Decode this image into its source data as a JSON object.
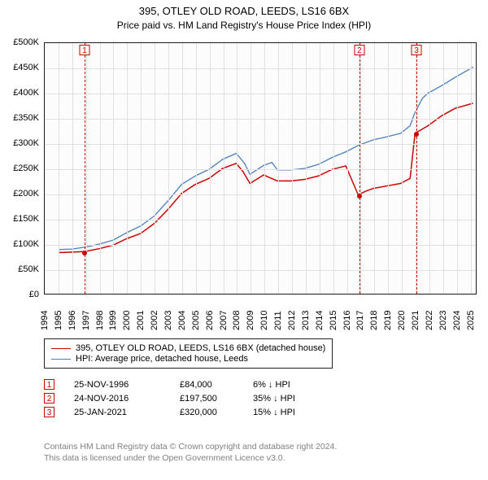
{
  "header": {
    "address": "395, OTLEY OLD ROAD, LEEDS, LS16 6BX",
    "subtitle": "Price paid vs. HM Land Registry's House Price Index (HPI)"
  },
  "chart": {
    "type": "line",
    "x_domain": [
      1994,
      2025.5
    ],
    "y_domain": [
      0,
      500000
    ],
    "background_color": "#fcfcfc",
    "grid_color": "#e0e0e0",
    "border_color": "#1a1a1a",
    "y_ticks": [
      0,
      50000,
      100000,
      150000,
      200000,
      250000,
      300000,
      350000,
      400000,
      450000,
      500000
    ],
    "y_tick_labels": [
      "£0",
      "£50K",
      "£100K",
      "£150K",
      "£200K",
      "£250K",
      "£300K",
      "£350K",
      "£400K",
      "£450K",
      "£500K"
    ],
    "x_ticks": [
      1994,
      1995,
      1996,
      1997,
      1998,
      1999,
      2000,
      2001,
      2002,
      2003,
      2004,
      2005,
      2006,
      2007,
      2008,
      2009,
      2010,
      2011,
      2012,
      2013,
      2014,
      2015,
      2016,
      2017,
      2018,
      2019,
      2020,
      2021,
      2022,
      2023,
      2024,
      2025
    ],
    "y_label_fontsize": 11,
    "x_label_fontsize": 11,
    "x_label_rotation": 90,
    "series": [
      {
        "name": "price_paid",
        "label": "395, OTLEY OLD ROAD, LEEDS, LS16 6BX (detached house)",
        "color": "#cc0000",
        "line_width": 1.5,
        "points": [
          [
            1995.0,
            82000
          ],
          [
            1996.9,
            84000
          ],
          [
            1998.0,
            90000
          ],
          [
            1999.0,
            97000
          ],
          [
            2000.0,
            110000
          ],
          [
            2001.0,
            120000
          ],
          [
            2002.0,
            140000
          ],
          [
            2003.0,
            168000
          ],
          [
            2004.0,
            200000
          ],
          [
            2005.0,
            218000
          ],
          [
            2006.0,
            230000
          ],
          [
            2007.0,
            250000
          ],
          [
            2008.0,
            260000
          ],
          [
            2008.5,
            243000
          ],
          [
            2009.0,
            220000
          ],
          [
            2010.0,
            237000
          ],
          [
            2011.0,
            225000
          ],
          [
            2012.0,
            225000
          ],
          [
            2013.0,
            228000
          ],
          [
            2014.0,
            235000
          ],
          [
            2015.0,
            248000
          ],
          [
            2016.0,
            255000
          ],
          [
            2016.9,
            197500
          ],
          [
            2017.5,
            205000
          ],
          [
            2018.0,
            210000
          ],
          [
            2019.0,
            215000
          ],
          [
            2020.0,
            220000
          ],
          [
            2020.7,
            230000
          ],
          [
            2021.06,
            320000
          ],
          [
            2022.0,
            335000
          ],
          [
            2023.0,
            355000
          ],
          [
            2024.0,
            370000
          ],
          [
            2025.3,
            380000
          ]
        ],
        "markers": [
          {
            "x": 1996.9,
            "y": 84000
          },
          {
            "x": 2016.9,
            "y": 197500
          },
          {
            "x": 2021.06,
            "y": 320000
          }
        ]
      },
      {
        "name": "hpi",
        "label": "HPI: Average price, detached house, Leeds",
        "color": "#4a7fb8",
        "line_width": 1.3,
        "points": [
          [
            1995.0,
            88000
          ],
          [
            1996.0,
            89000
          ],
          [
            1997.0,
            93000
          ],
          [
            1998.0,
            99000
          ],
          [
            1999.0,
            107000
          ],
          [
            2000.0,
            122000
          ],
          [
            2001.0,
            135000
          ],
          [
            2002.0,
            155000
          ],
          [
            2003.0,
            185000
          ],
          [
            2004.0,
            218000
          ],
          [
            2005.0,
            235000
          ],
          [
            2006.0,
            248000
          ],
          [
            2007.0,
            268000
          ],
          [
            2008.0,
            280000
          ],
          [
            2008.6,
            260000
          ],
          [
            2009.0,
            238000
          ],
          [
            2010.0,
            256000
          ],
          [
            2010.6,
            262000
          ],
          [
            2011.0,
            247000
          ],
          [
            2012.0,
            247000
          ],
          [
            2013.0,
            250000
          ],
          [
            2014.0,
            258000
          ],
          [
            2015.0,
            272000
          ],
          [
            2016.0,
            283000
          ],
          [
            2017.0,
            297000
          ],
          [
            2018.0,
            307000
          ],
          [
            2019.0,
            313000
          ],
          [
            2020.0,
            320000
          ],
          [
            2020.7,
            335000
          ],
          [
            2021.0,
            358000
          ],
          [
            2021.6,
            390000
          ],
          [
            2022.0,
            400000
          ],
          [
            2023.0,
            415000
          ],
          [
            2024.0,
            432000
          ],
          [
            2025.3,
            452000
          ]
        ]
      }
    ],
    "events": [
      {
        "num": "1",
        "x": 1996.9,
        "line_color": "#cc0000"
      },
      {
        "num": "2",
        "x": 2016.9,
        "line_color": "#cc0000"
      },
      {
        "num": "3",
        "x": 2021.06,
        "line_color": "#cc0000"
      }
    ]
  },
  "legend": {
    "items": [
      {
        "color": "#cc0000",
        "width": 1.6,
        "label": "395, OTLEY OLD ROAD, LEEDS, LS16 6BX (detached house)"
      },
      {
        "color": "#4a7fb8",
        "width": 1.4,
        "label": "HPI: Average price, detached house, Leeds"
      }
    ]
  },
  "events_table": {
    "rows": [
      {
        "num": "1",
        "date": "25-NOV-1996",
        "price": "£84,000",
        "diff": "6% ↓ HPI"
      },
      {
        "num": "2",
        "date": "24-NOV-2016",
        "price": "£197,500",
        "diff": "35% ↓ HPI"
      },
      {
        "num": "3",
        "date": "25-JAN-2021",
        "price": "£320,000",
        "diff": "15% ↓ HPI"
      }
    ]
  },
  "footer": {
    "line1": "Contains HM Land Registry data © Crown copyright and database right 2024.",
    "line2": "This data is licensed under the Open Government Licence v3.0."
  }
}
